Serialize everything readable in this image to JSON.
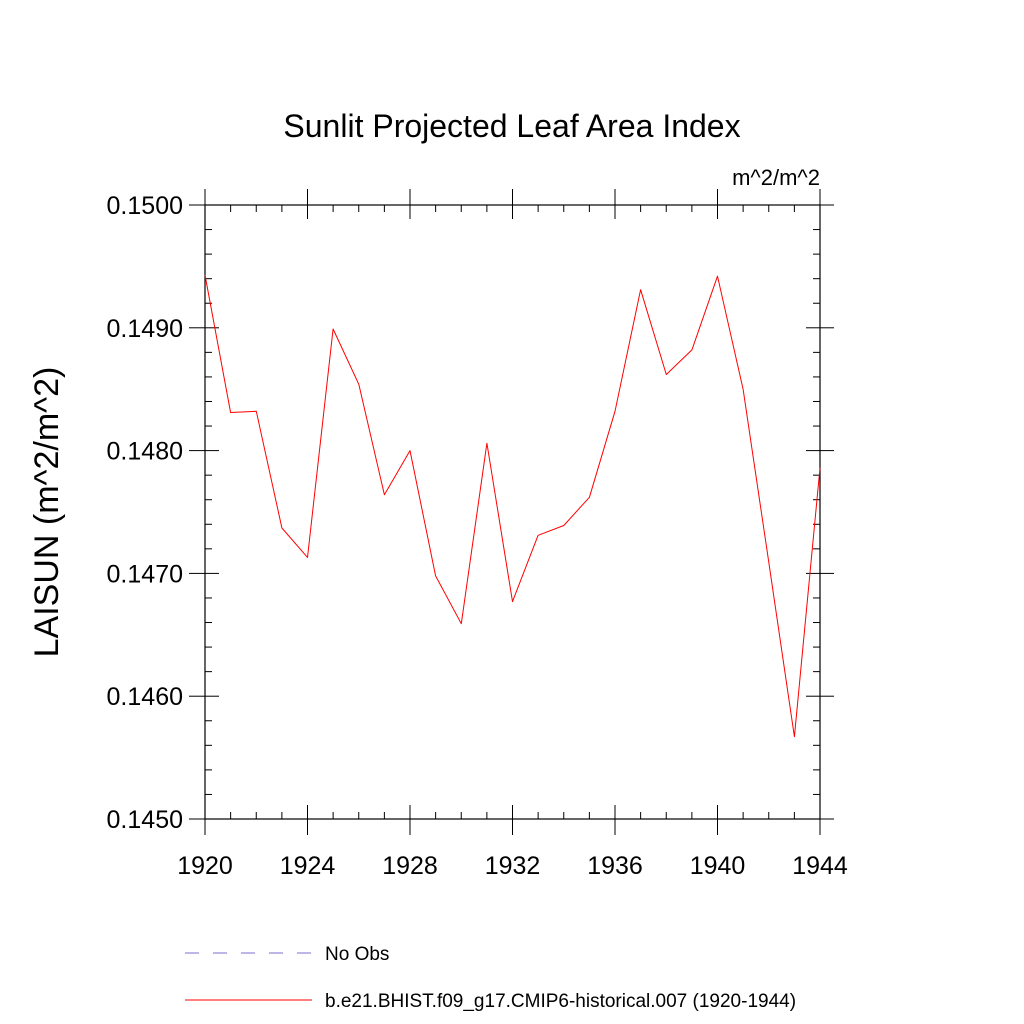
{
  "chart_data": {
    "type": "line",
    "title": "Sunlit Projected Leaf Area Index",
    "units": "m^2/m^2",
    "ylabel": "LAISUN  (m^2/m^2)",
    "xlabel": "",
    "xlim": [
      1920,
      1944
    ],
    "ylim": [
      0.145,
      0.15
    ],
    "x_ticks": [
      1920,
      1924,
      1928,
      1932,
      1936,
      1940,
      1944
    ],
    "x_tick_labels": [
      "1920",
      "1924",
      "1928",
      "1932",
      "1936",
      "1940",
      "1944"
    ],
    "y_ticks": [
      0.145,
      0.146,
      0.147,
      0.148,
      0.149,
      0.15
    ],
    "y_tick_labels": [
      "0.1450",
      "0.1460",
      "0.1470",
      "0.1480",
      "0.1490",
      "0.1500"
    ],
    "grid": false,
    "series": [
      {
        "name": "b.e21.BHIST.f09_g17.CMIP6-historical.007 (1920-1944)",
        "color": "#ff0000",
        "style": "solid",
        "x": [
          1920,
          1921,
          1922,
          1923,
          1924,
          1925,
          1926,
          1927,
          1928,
          1929,
          1930,
          1931,
          1932,
          1933,
          1934,
          1935,
          1936,
          1937,
          1938,
          1939,
          1940,
          1941,
          1942,
          1943,
          1944
        ],
        "values": [
          0.14943,
          0.14831,
          0.14832,
          0.14737,
          0.14713,
          0.14899,
          0.14854,
          0.14764,
          0.148,
          0.14698,
          0.14659,
          0.14806,
          0.14677,
          0.14731,
          0.14739,
          0.14762,
          0.14832,
          0.14931,
          0.14862,
          0.14882,
          0.14942,
          0.1485,
          0.14709,
          0.14567,
          0.14786
        ]
      }
    ],
    "legend": [
      {
        "label": "No Obs",
        "color": "#7b6fd0",
        "style": "dashed"
      },
      {
        "label": "b.e21.BHIST.f09_g17.CMIP6-historical.007 (1920-1944)",
        "color": "#ff0000",
        "style": "solid"
      }
    ]
  }
}
